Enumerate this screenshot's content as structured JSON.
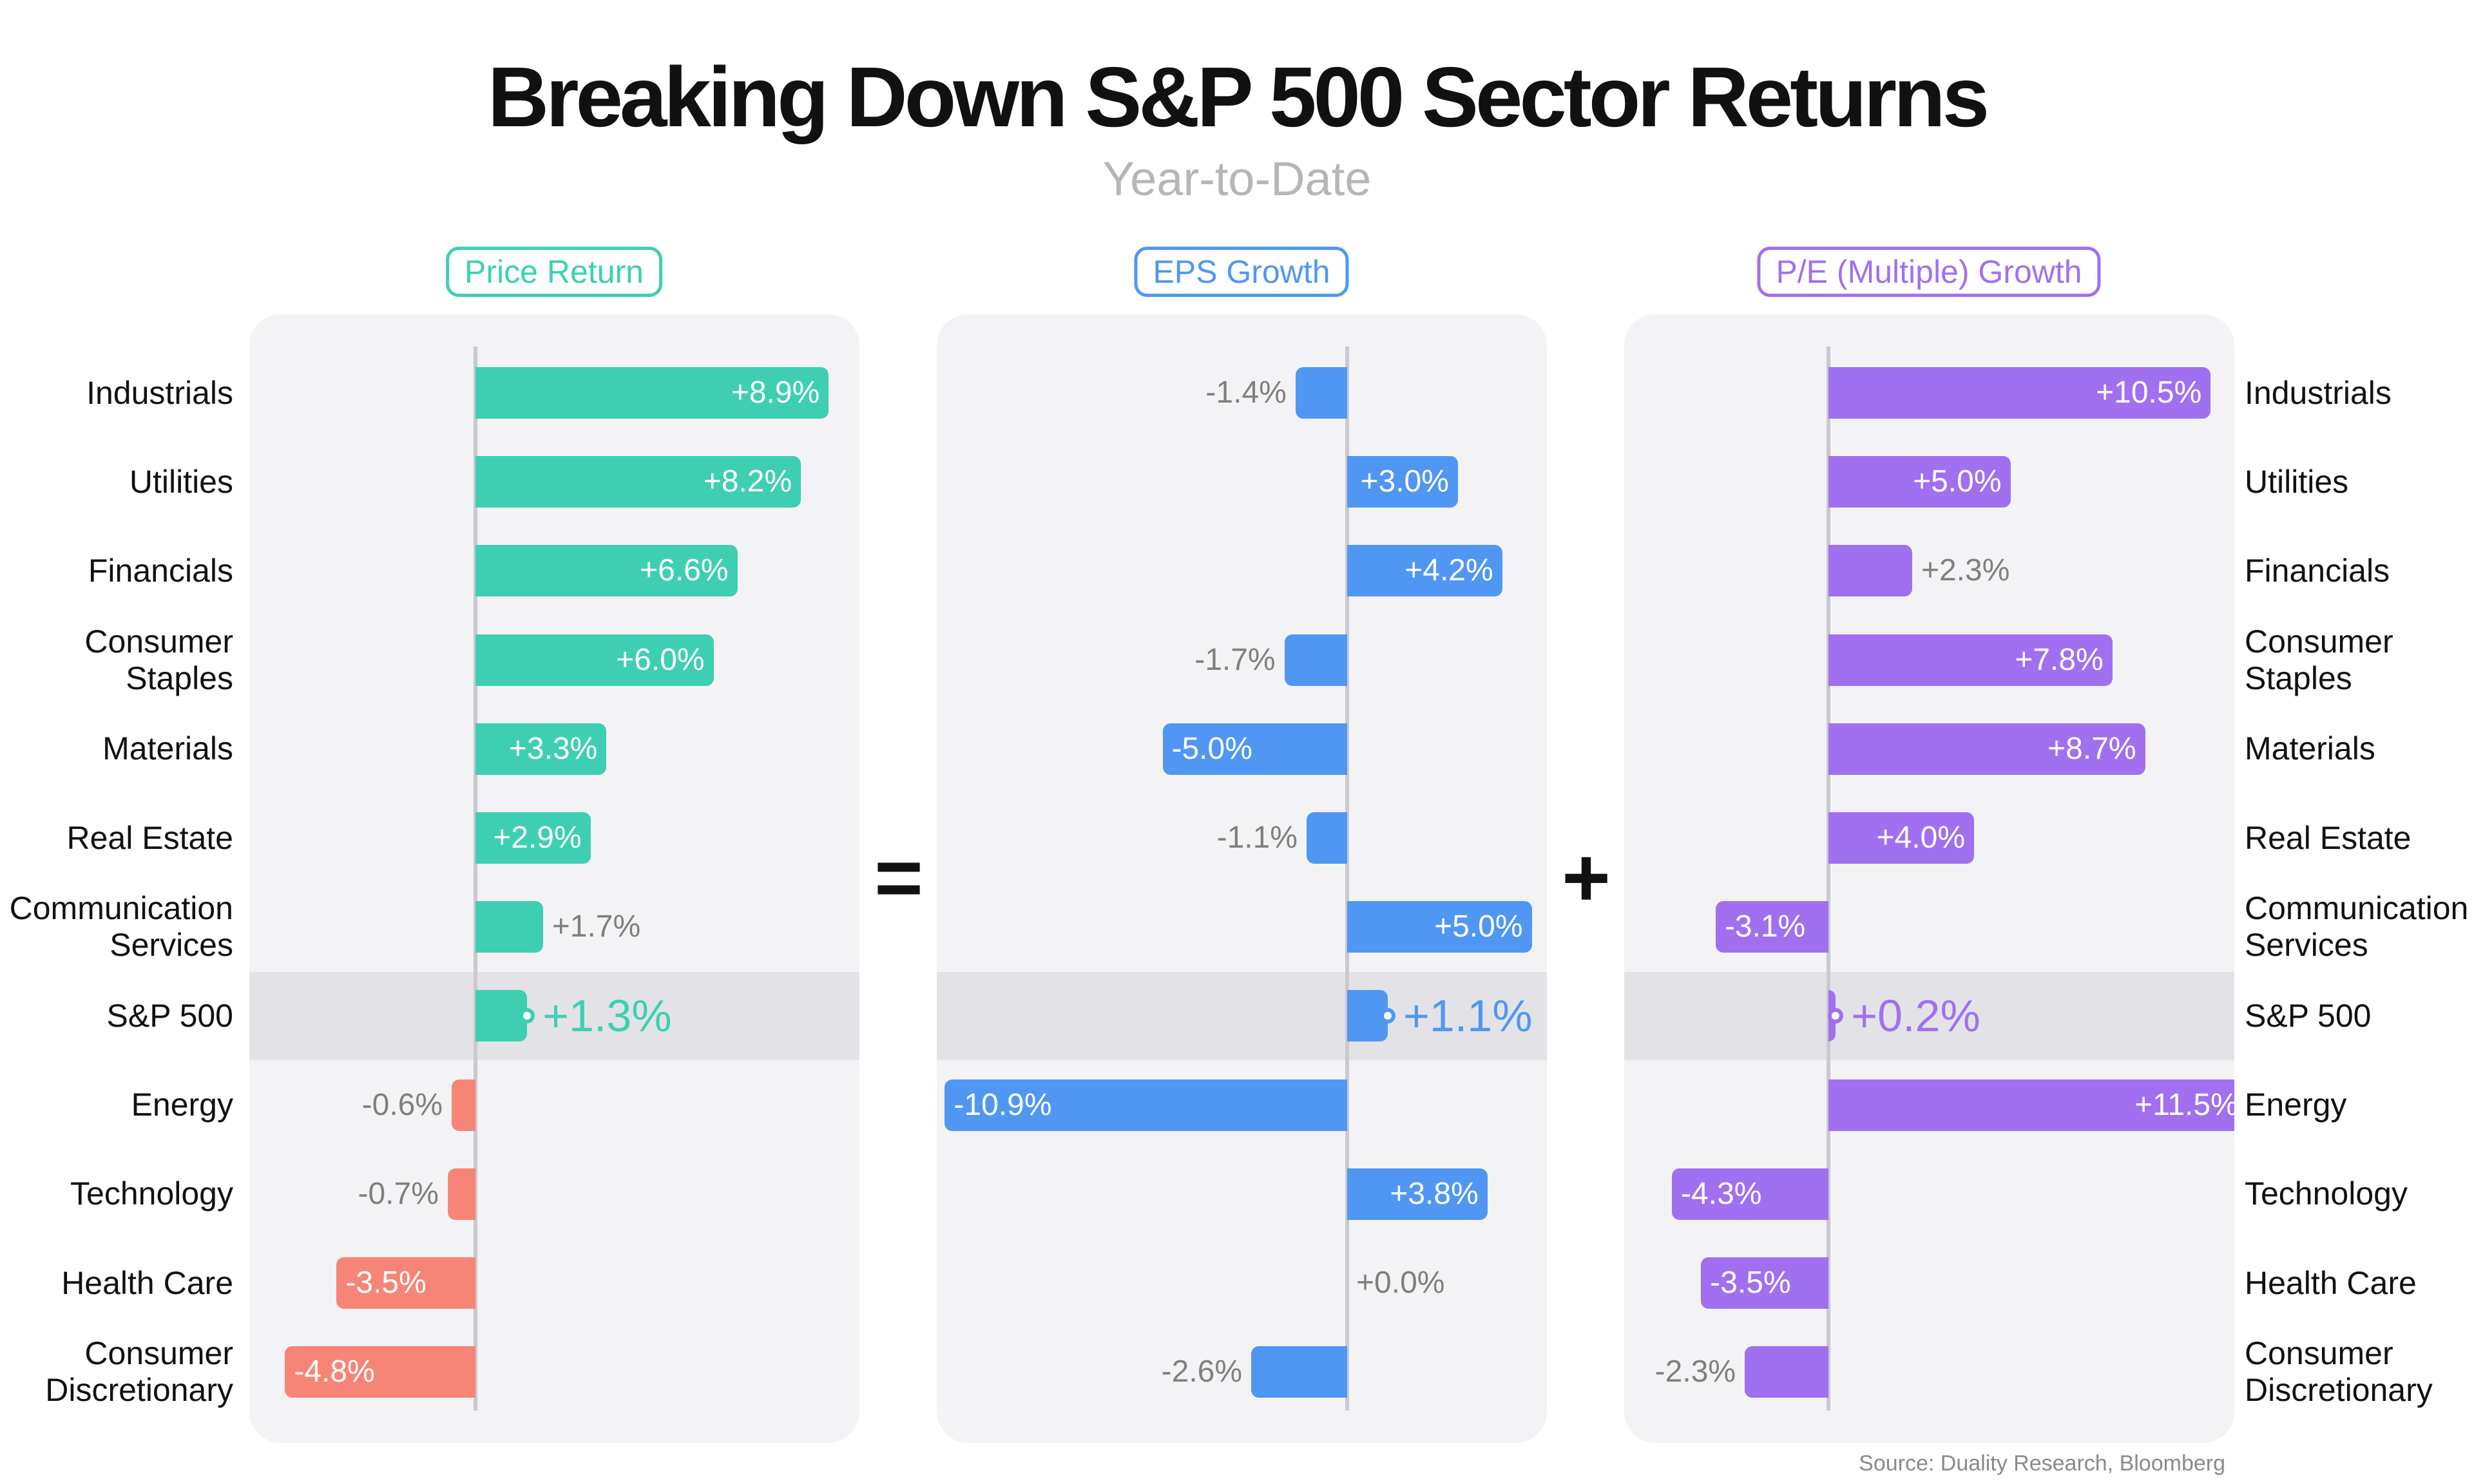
{
  "title": "Breaking Down S&P 500 Sector Returns",
  "subtitle": "Year-to-Date",
  "operators": {
    "equals": "=",
    "plus": "+"
  },
  "source": "Source: Duality Research, Bloomberg",
  "colors": {
    "price_return": "#3ecfb2",
    "price_return_negative": "#f68577",
    "eps_growth": "#4f97f2",
    "pe_growth": "#a070f0",
    "outside_label": "#7f7f7f",
    "panel_background": "#f3f3f6",
    "highlight_band": "#e3e3e7"
  },
  "chart_data": [
    {
      "type": "bar",
      "orientation": "horizontal",
      "title": "Price Return",
      "unit": "%",
      "categories": [
        "Industrials",
        "Utilities",
        "Financials",
        "Consumer Staples",
        "Materials",
        "Real Estate",
        "Communication Services",
        "S&P 500",
        "Energy",
        "Technology",
        "Health Care",
        "Consumer Discretionary"
      ],
      "values": [
        8.9,
        8.2,
        6.6,
        6.0,
        3.3,
        2.9,
        1.7,
        1.3,
        -0.6,
        -0.7,
        -3.5,
        -4.8
      ],
      "labels": [
        "+8.9%",
        "+8.2%",
        "+6.6%",
        "+6.0%",
        "+3.3%",
        "+2.9%",
        "+1.7%",
        "+1.3%",
        "-0.6%",
        "-0.7%",
        "-3.5%",
        "-4.8%"
      ],
      "highlight": "S&P 500"
    },
    {
      "type": "bar",
      "orientation": "horizontal",
      "title": "EPS Growth",
      "unit": "%",
      "categories": [
        "Industrials",
        "Utilities",
        "Financials",
        "Consumer Staples",
        "Materials",
        "Real Estate",
        "Communication Services",
        "S&P 500",
        "Energy",
        "Technology",
        "Health Care",
        "Consumer Discretionary"
      ],
      "values": [
        -1.4,
        3.0,
        4.2,
        -1.7,
        -5.0,
        -1.1,
        5.0,
        1.1,
        -10.9,
        3.8,
        0.0,
        -2.6
      ],
      "labels": [
        "-1.4%",
        "+3.0%",
        "+4.2%",
        "-1.7%",
        "-5.0%",
        "-1.1%",
        "+5.0%",
        "+1.1%",
        "-10.9%",
        "+3.8%",
        "+0.0%",
        "-2.6%"
      ],
      "highlight": "S&P 500"
    },
    {
      "type": "bar",
      "orientation": "horizontal",
      "title": "P/E (Multiple) Growth",
      "unit": "%",
      "categories": [
        "Industrials",
        "Utilities",
        "Financials",
        "Consumer Staples",
        "Materials",
        "Real Estate",
        "Communication Services",
        "S&P 500",
        "Energy",
        "Technology",
        "Health Care",
        "Consumer Discretionary"
      ],
      "values": [
        10.5,
        5.0,
        2.3,
        7.8,
        8.7,
        4.0,
        -3.1,
        0.2,
        11.5,
        -4.3,
        -3.5,
        -2.3
      ],
      "labels": [
        "+10.5%",
        "+5.0%",
        "+2.3%",
        "+7.8%",
        "+8.7%",
        "+4.0%",
        "-3.1%",
        "+0.2%",
        "+11.5%",
        "-4.3%",
        "-3.5%",
        "-2.3%"
      ],
      "highlight": "S&P 500"
    }
  ],
  "row_labels": [
    [
      "Industrials"
    ],
    [
      "Utilities"
    ],
    [
      "Financials"
    ],
    [
      "Consumer",
      "Staples"
    ],
    [
      "Materials"
    ],
    [
      "Real Estate"
    ],
    [
      "Communication",
      "Services"
    ],
    [
      "S&P 500"
    ],
    [
      "Energy"
    ],
    [
      "Technology"
    ],
    [
      "Health Care"
    ],
    [
      "Consumer",
      "Discretionary"
    ]
  ]
}
